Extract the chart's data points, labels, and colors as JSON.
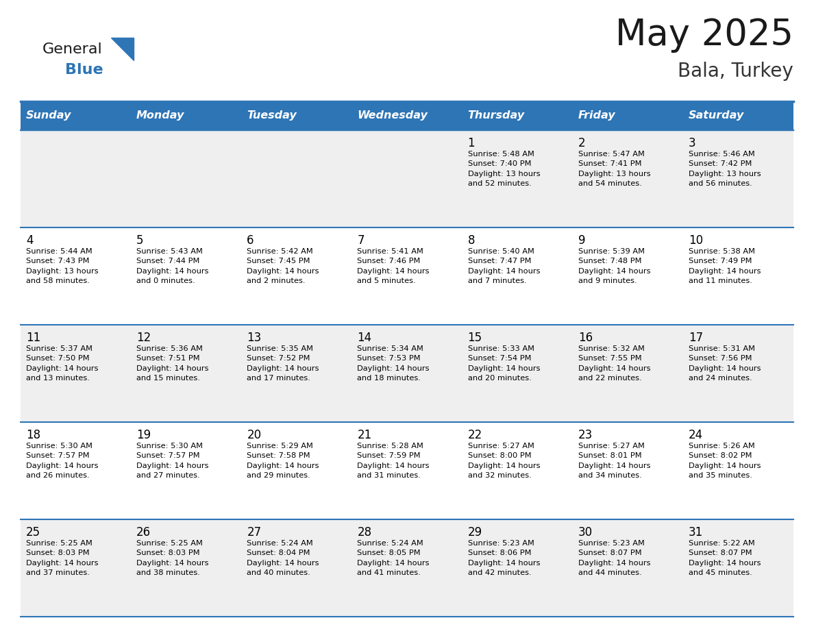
{
  "title": "May 2025",
  "subtitle": "Bala, Turkey",
  "days_of_week": [
    "Sunday",
    "Monday",
    "Tuesday",
    "Wednesday",
    "Thursday",
    "Friday",
    "Saturday"
  ],
  "header_bg": "#2E75B6",
  "header_text_color": "#FFFFFF",
  "row_bg_even": "#EFEFEF",
  "row_bg_odd": "#FFFFFF",
  "cell_text_color": "#000000",
  "grid_line_color": "#2E75B6",
  "title_color": "#1a1a1a",
  "subtitle_color": "#333333",
  "calendar_data": [
    [
      {
        "day": "",
        "info": ""
      },
      {
        "day": "",
        "info": ""
      },
      {
        "day": "",
        "info": ""
      },
      {
        "day": "",
        "info": ""
      },
      {
        "day": "1",
        "info": "Sunrise: 5:48 AM\nSunset: 7:40 PM\nDaylight: 13 hours\nand 52 minutes."
      },
      {
        "day": "2",
        "info": "Sunrise: 5:47 AM\nSunset: 7:41 PM\nDaylight: 13 hours\nand 54 minutes."
      },
      {
        "day": "3",
        "info": "Sunrise: 5:46 AM\nSunset: 7:42 PM\nDaylight: 13 hours\nand 56 minutes."
      }
    ],
    [
      {
        "day": "4",
        "info": "Sunrise: 5:44 AM\nSunset: 7:43 PM\nDaylight: 13 hours\nand 58 minutes."
      },
      {
        "day": "5",
        "info": "Sunrise: 5:43 AM\nSunset: 7:44 PM\nDaylight: 14 hours\nand 0 minutes."
      },
      {
        "day": "6",
        "info": "Sunrise: 5:42 AM\nSunset: 7:45 PM\nDaylight: 14 hours\nand 2 minutes."
      },
      {
        "day": "7",
        "info": "Sunrise: 5:41 AM\nSunset: 7:46 PM\nDaylight: 14 hours\nand 5 minutes."
      },
      {
        "day": "8",
        "info": "Sunrise: 5:40 AM\nSunset: 7:47 PM\nDaylight: 14 hours\nand 7 minutes."
      },
      {
        "day": "9",
        "info": "Sunrise: 5:39 AM\nSunset: 7:48 PM\nDaylight: 14 hours\nand 9 minutes."
      },
      {
        "day": "10",
        "info": "Sunrise: 5:38 AM\nSunset: 7:49 PM\nDaylight: 14 hours\nand 11 minutes."
      }
    ],
    [
      {
        "day": "11",
        "info": "Sunrise: 5:37 AM\nSunset: 7:50 PM\nDaylight: 14 hours\nand 13 minutes."
      },
      {
        "day": "12",
        "info": "Sunrise: 5:36 AM\nSunset: 7:51 PM\nDaylight: 14 hours\nand 15 minutes."
      },
      {
        "day": "13",
        "info": "Sunrise: 5:35 AM\nSunset: 7:52 PM\nDaylight: 14 hours\nand 17 minutes."
      },
      {
        "day": "14",
        "info": "Sunrise: 5:34 AM\nSunset: 7:53 PM\nDaylight: 14 hours\nand 18 minutes."
      },
      {
        "day": "15",
        "info": "Sunrise: 5:33 AM\nSunset: 7:54 PM\nDaylight: 14 hours\nand 20 minutes."
      },
      {
        "day": "16",
        "info": "Sunrise: 5:32 AM\nSunset: 7:55 PM\nDaylight: 14 hours\nand 22 minutes."
      },
      {
        "day": "17",
        "info": "Sunrise: 5:31 AM\nSunset: 7:56 PM\nDaylight: 14 hours\nand 24 minutes."
      }
    ],
    [
      {
        "day": "18",
        "info": "Sunrise: 5:30 AM\nSunset: 7:57 PM\nDaylight: 14 hours\nand 26 minutes."
      },
      {
        "day": "19",
        "info": "Sunrise: 5:30 AM\nSunset: 7:57 PM\nDaylight: 14 hours\nand 27 minutes."
      },
      {
        "day": "20",
        "info": "Sunrise: 5:29 AM\nSunset: 7:58 PM\nDaylight: 14 hours\nand 29 minutes."
      },
      {
        "day": "21",
        "info": "Sunrise: 5:28 AM\nSunset: 7:59 PM\nDaylight: 14 hours\nand 31 minutes."
      },
      {
        "day": "22",
        "info": "Sunrise: 5:27 AM\nSunset: 8:00 PM\nDaylight: 14 hours\nand 32 minutes."
      },
      {
        "day": "23",
        "info": "Sunrise: 5:27 AM\nSunset: 8:01 PM\nDaylight: 14 hours\nand 34 minutes."
      },
      {
        "day": "24",
        "info": "Sunrise: 5:26 AM\nSunset: 8:02 PM\nDaylight: 14 hours\nand 35 minutes."
      }
    ],
    [
      {
        "day": "25",
        "info": "Sunrise: 5:25 AM\nSunset: 8:03 PM\nDaylight: 14 hours\nand 37 minutes."
      },
      {
        "day": "26",
        "info": "Sunrise: 5:25 AM\nSunset: 8:03 PM\nDaylight: 14 hours\nand 38 minutes."
      },
      {
        "day": "27",
        "info": "Sunrise: 5:24 AM\nSunset: 8:04 PM\nDaylight: 14 hours\nand 40 minutes."
      },
      {
        "day": "28",
        "info": "Sunrise: 5:24 AM\nSunset: 8:05 PM\nDaylight: 14 hours\nand 41 minutes."
      },
      {
        "day": "29",
        "info": "Sunrise: 5:23 AM\nSunset: 8:06 PM\nDaylight: 14 hours\nand 42 minutes."
      },
      {
        "day": "30",
        "info": "Sunrise: 5:23 AM\nSunset: 8:07 PM\nDaylight: 14 hours\nand 44 minutes."
      },
      {
        "day": "31",
        "info": "Sunrise: 5:22 AM\nSunset: 8:07 PM\nDaylight: 14 hours\nand 45 minutes."
      }
    ]
  ],
  "logo_general_color": "#1a1a1a",
  "logo_blue_color": "#2E75B6",
  "logo_triangle_color": "#2E75B6",
  "fig_width": 11.88,
  "fig_height": 9.18,
  "dpi": 100
}
